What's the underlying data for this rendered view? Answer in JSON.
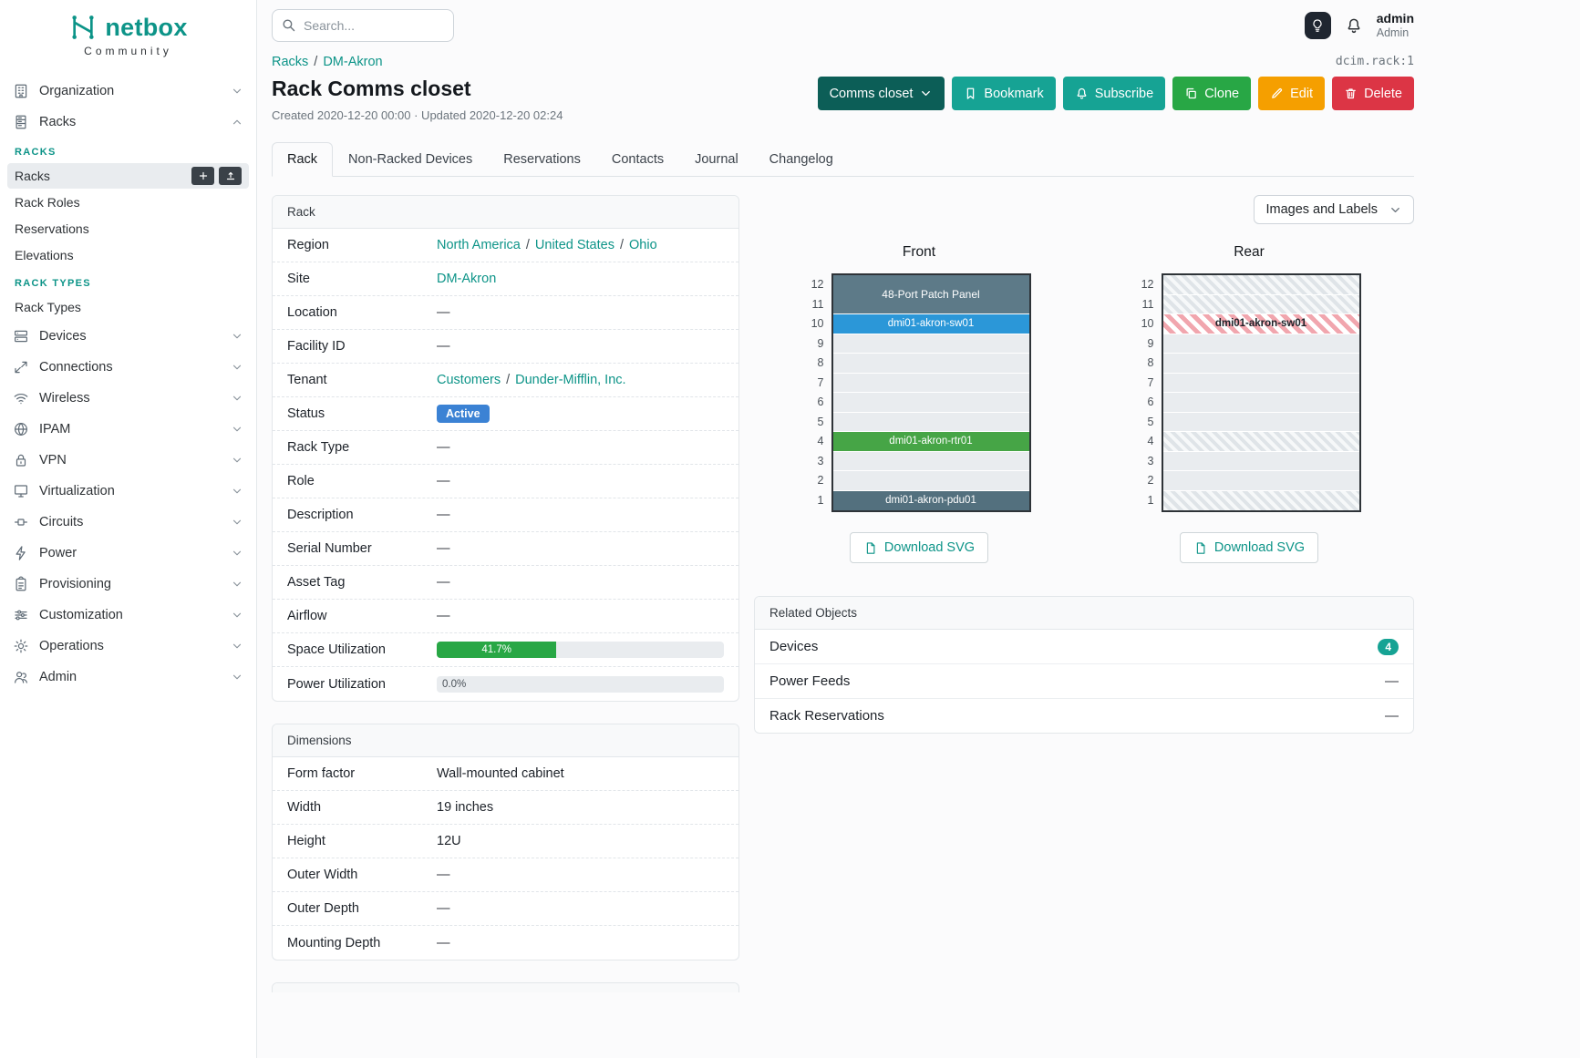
{
  "brand": {
    "name": "netbox",
    "subtitle": "Community"
  },
  "topbar": {
    "search_placeholder": "Search...",
    "user_name": "admin",
    "user_role": "Admin"
  },
  "colors": {
    "brand_teal": "#0d9488",
    "button_dark_teal": "#0c5e57",
    "button_teal": "#16a394",
    "button_green": "#28a745",
    "button_orange": "#f59f00",
    "button_red": "#dc3545",
    "status_active_blue": "#3b82d4",
    "progress_green": "#28a745",
    "badge_teal": "#16a394"
  },
  "sidebar": {
    "items": [
      {
        "label": "Organization",
        "icon": "building-icon"
      },
      {
        "label": "Racks",
        "icon": "rack-icon",
        "expanded": true
      },
      {
        "label": "Devices",
        "icon": "devices-icon"
      },
      {
        "label": "Connections",
        "icon": "connections-icon"
      },
      {
        "label": "Wireless",
        "icon": "wifi-icon"
      },
      {
        "label": "IPAM",
        "icon": "ipam-icon"
      },
      {
        "label": "VPN",
        "icon": "vpn-icon"
      },
      {
        "label": "Virtualization",
        "icon": "virtualization-icon"
      },
      {
        "label": "Circuits",
        "icon": "circuits-icon"
      },
      {
        "label": "Power",
        "icon": "power-icon"
      },
      {
        "label": "Provisioning",
        "icon": "provisioning-icon"
      },
      {
        "label": "Customization",
        "icon": "customization-icon"
      },
      {
        "label": "Operations",
        "icon": "operations-icon"
      },
      {
        "label": "Admin",
        "icon": "admin-icon"
      }
    ],
    "racks_submenu": {
      "groups": [
        {
          "heading": "RACKS",
          "items": [
            {
              "label": "Racks",
              "active": true,
              "actions": [
                "add",
                "import"
              ]
            },
            {
              "label": "Rack Roles"
            },
            {
              "label": "Reservations"
            },
            {
              "label": "Elevations"
            }
          ]
        },
        {
          "heading": "RACK TYPES",
          "items": [
            {
              "label": "Rack Types"
            }
          ]
        }
      ]
    }
  },
  "page": {
    "breadcrumb": [
      "Racks",
      "DM-Akron"
    ],
    "object_id": "dcim.rack:1",
    "title": "Rack Comms closet",
    "meta": "Created 2020-12-20 00:00 · Updated 2020-12-20 02:24",
    "actions": [
      {
        "label": "Comms closet",
        "type": "dark",
        "icon": "chevron-down-icon",
        "icon_position": "right"
      },
      {
        "label": "Bookmark",
        "type": "teal",
        "icon": "bookmark-icon"
      },
      {
        "label": "Subscribe",
        "type": "teal",
        "icon": "bell-icon"
      },
      {
        "label": "Clone",
        "type": "green",
        "icon": "copy-icon"
      },
      {
        "label": "Edit",
        "type": "orange",
        "icon": "pencil-icon"
      },
      {
        "label": "Delete",
        "type": "red",
        "icon": "trash-icon"
      }
    ],
    "tabs": [
      {
        "label": "Rack",
        "active": true
      },
      {
        "label": "Non-Racked Devices"
      },
      {
        "label": "Reservations"
      },
      {
        "label": "Contacts"
      },
      {
        "label": "Journal"
      },
      {
        "label": "Changelog"
      }
    ]
  },
  "rack_panel": {
    "title": "Rack",
    "rows": [
      {
        "label": "Region",
        "type": "links",
        "links": [
          "North America",
          "United States",
          "Ohio"
        ]
      },
      {
        "label": "Site",
        "type": "link",
        "value": "DM-Akron"
      },
      {
        "label": "Location",
        "value": "—"
      },
      {
        "label": "Facility ID",
        "value": "—"
      },
      {
        "label": "Tenant",
        "type": "links",
        "links": [
          "Customers",
          "Dunder-Mifflin, Inc."
        ]
      },
      {
        "label": "Status",
        "type": "badge",
        "value": "Active",
        "badge_color": "#3b82d4"
      },
      {
        "label": "Rack Type",
        "value": "—"
      },
      {
        "label": "Role",
        "value": "—"
      },
      {
        "label": "Description",
        "value": "—"
      },
      {
        "label": "Serial Number",
        "value": "—"
      },
      {
        "label": "Asset Tag",
        "value": "—"
      },
      {
        "label": "Airflow",
        "value": "—"
      },
      {
        "label": "Space Utilization",
        "type": "progress",
        "percent": 41.7,
        "display": "41.7%",
        "color": "#28a745"
      },
      {
        "label": "Power Utilization",
        "type": "progress",
        "percent": 0.0,
        "display": "0.0%",
        "color": "#28a745"
      }
    ]
  },
  "dimensions_panel": {
    "title": "Dimensions",
    "rows": [
      {
        "label": "Form factor",
        "value": "Wall-mounted cabinet",
        "plain": true
      },
      {
        "label": "Width",
        "value": "19 inches",
        "plain": true
      },
      {
        "label": "Height",
        "value": "12U",
        "plain": true
      },
      {
        "label": "Outer Width",
        "value": "—"
      },
      {
        "label": "Outer Depth",
        "value": "—"
      },
      {
        "label": "Mounting Depth",
        "value": "—"
      }
    ]
  },
  "elevations": {
    "images_labels_button": "Images and Labels",
    "download_label": "Download SVG",
    "front": {
      "title": "Front",
      "units": [
        {
          "u": 12,
          "span": 2,
          "type": "device",
          "label": "48-Port Patch Panel",
          "color": "#5d7a88"
        },
        {
          "u": 10,
          "span": 1,
          "type": "device",
          "label": "dmi01-akron-sw01",
          "color": "#2b97d8"
        },
        {
          "u": 9,
          "type": "empty"
        },
        {
          "u": 8,
          "type": "empty"
        },
        {
          "u": 7,
          "type": "empty"
        },
        {
          "u": 6,
          "type": "empty"
        },
        {
          "u": 5,
          "type": "empty"
        },
        {
          "u": 4,
          "span": 1,
          "type": "device",
          "label": "dmi01-akron-rtr01",
          "color": "#46a546"
        },
        {
          "u": 3,
          "type": "empty"
        },
        {
          "u": 2,
          "type": "empty"
        },
        {
          "u": 1,
          "span": 1,
          "type": "device",
          "label": "dmi01-akron-pdu01",
          "color": "#53707e"
        }
      ]
    },
    "rear": {
      "title": "Rear",
      "units": [
        {
          "u": 12,
          "type": "hatched"
        },
        {
          "u": 11,
          "type": "hatched"
        },
        {
          "u": 10,
          "type": "hatched-red",
          "label": "dmi01-akron-sw01"
        },
        {
          "u": 9,
          "type": "empty"
        },
        {
          "u": 8,
          "type": "empty"
        },
        {
          "u": 7,
          "type": "empty"
        },
        {
          "u": 6,
          "type": "empty"
        },
        {
          "u": 5,
          "type": "empty"
        },
        {
          "u": 4,
          "type": "hatched"
        },
        {
          "u": 3,
          "type": "empty"
        },
        {
          "u": 2,
          "type": "empty"
        },
        {
          "u": 1,
          "type": "hatched"
        }
      ]
    }
  },
  "related_objects": {
    "title": "Related Objects",
    "rows": [
      {
        "label": "Devices",
        "type": "badge",
        "value": "4",
        "badge_color": "#16a394"
      },
      {
        "label": "Power Feeds",
        "value": "—"
      },
      {
        "label": "Rack Reservations",
        "value": "—"
      }
    ]
  }
}
